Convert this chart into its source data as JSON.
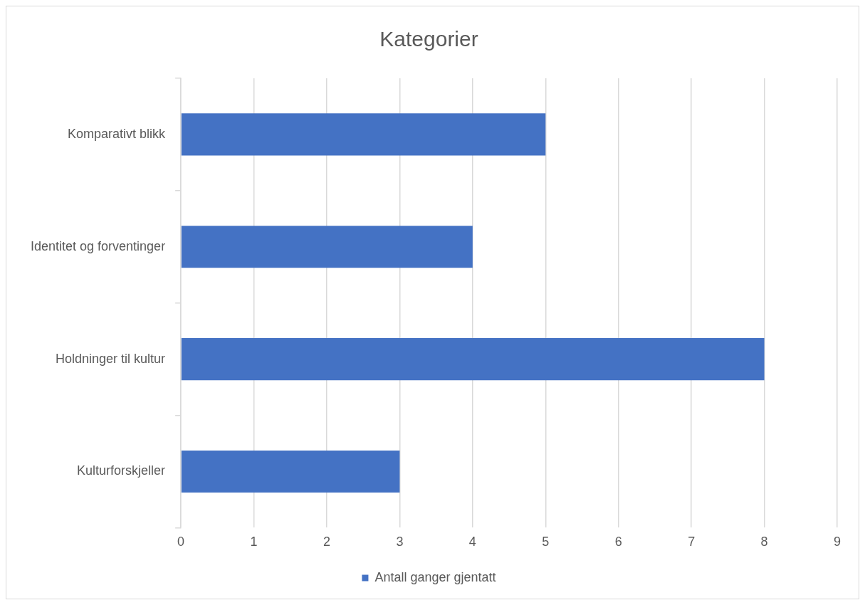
{
  "chart_data": {
    "type": "bar",
    "orientation": "horizontal",
    "title": "Kategorier",
    "categories": [
      "Komparativt blikk",
      "Identitet og forventinger",
      "Holdninger til kultur",
      "Kulturforskjeller"
    ],
    "series": [
      {
        "name": "Antall ganger gjentatt",
        "color": "#4472c4",
        "values": [
          5,
          4,
          8,
          3
        ]
      }
    ],
    "xlim": [
      0,
      9
    ],
    "xticks": [
      0,
      1,
      2,
      3,
      4,
      5,
      6,
      7,
      8,
      9
    ],
    "grid": "x",
    "legend": "bottom"
  }
}
